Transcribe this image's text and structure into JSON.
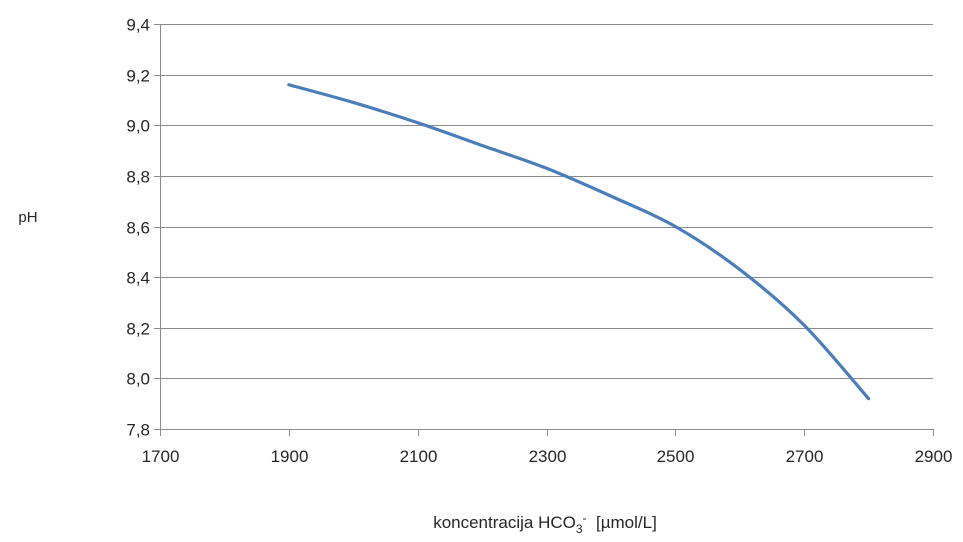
{
  "chart_data": {
    "type": "line",
    "title": "",
    "xlabel": {
      "prefix": "koncentracija HCO",
      "subscript": "3",
      "superscript": "-",
      "suffix": "  [µmol/L]"
    },
    "ylabel": "pH",
    "xlim": [
      1700,
      2900
    ],
    "ylim": [
      7.8,
      9.4
    ],
    "x_ticks": [
      1700,
      1900,
      2100,
      2300,
      2500,
      2700,
      2900
    ],
    "x_tick_labels": [
      "1700",
      "1900",
      "2100",
      "2300",
      "2500",
      "2700",
      "2900"
    ],
    "y_ticks": [
      7.8,
      8.0,
      8.2,
      8.4,
      8.6,
      8.8,
      9.0,
      9.2,
      9.4
    ],
    "y_tick_labels": [
      "7,8",
      "8,0",
      "8,2",
      "8,4",
      "8,6",
      "8,8",
      "9,0",
      "9,2",
      "9,4"
    ],
    "grid": "horizontal",
    "legend": "none",
    "colors": {
      "line": "#4a7ebb",
      "grid": "#8c8c8c",
      "axis": "#8c8c8c"
    },
    "series": [
      {
        "x": [
          1900,
          2000,
          2100,
          2200,
          2300,
          2400,
          2500,
          2600,
          2700,
          2800
        ],
        "values": [
          9.16,
          9.09,
          9.01,
          8.92,
          8.83,
          8.72,
          8.6,
          8.43,
          8.21,
          7.92
        ]
      }
    ]
  }
}
